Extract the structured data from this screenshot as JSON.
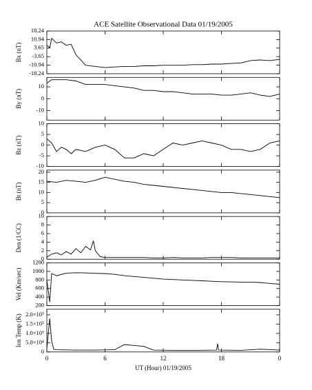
{
  "chart_data": [
    {
      "type": "line",
      "title": "ACE Satellite Observational Data   01/19/2005",
      "ylabel": "Bx (nT)",
      "x": [
        0,
        0.3,
        0.5,
        1,
        1.5,
        2,
        2.5,
        3,
        4,
        5,
        6,
        7,
        8,
        9,
        10,
        11,
        12,
        13,
        14,
        15,
        16,
        17,
        18,
        19,
        20,
        21,
        22,
        23,
        24
      ],
      "values": [
        6,
        4,
        12,
        8,
        9,
        6,
        7,
        -2,
        -11,
        -12,
        -13,
        -12.5,
        -12,
        -12,
        -11.5,
        -11.5,
        -11,
        -11,
        -11,
        -10.5,
        -10.5,
        -10,
        -10,
        -9.5,
        -9,
        -7,
        -6.5,
        -7,
        -6
      ],
      "ylim": [
        -18.24,
        18.24
      ],
      "yticks": [
        18.24,
        10.94,
        3.65,
        -3.65,
        -10.94,
        -18.24
      ],
      "color": "#000000"
    },
    {
      "type": "line",
      "ylabel": "By (nT)",
      "x": [
        0,
        0.5,
        1,
        2,
        3,
        4,
        5,
        6,
        7,
        8,
        9,
        10,
        11,
        12,
        13,
        14,
        15,
        16,
        17,
        18,
        19,
        20,
        21,
        22,
        23,
        24
      ],
      "values": [
        13,
        16,
        16,
        16,
        15,
        12,
        12,
        12,
        11,
        10,
        9,
        7,
        7,
        6,
        6,
        5,
        4,
        4,
        4,
        3,
        3,
        4,
        5,
        3,
        2,
        4
      ],
      "ylim": [
        -18,
        18
      ],
      "yticks": [
        10,
        0,
        -10
      ],
      "color": "#000000"
    },
    {
      "type": "line",
      "ylabel": "Bz (nT)",
      "x": [
        0,
        0.5,
        1,
        1.5,
        2,
        2.5,
        3,
        4,
        5,
        6,
        7,
        8,
        9,
        10,
        11,
        12,
        13,
        14,
        15,
        16,
        17,
        18,
        19,
        20,
        21,
        22,
        23,
        24
      ],
      "values": [
        3,
        1,
        -3,
        -1,
        -2,
        -4,
        -2,
        -3,
        -1,
        0,
        -2,
        -6,
        -6,
        -4,
        -5,
        -2,
        1,
        0,
        1,
        2,
        1,
        0,
        -2,
        -2,
        -3,
        -2,
        1,
        2
      ],
      "ylim": [
        -10,
        10
      ],
      "yticks": [
        10,
        5,
        0,
        -5,
        -10
      ],
      "color": "#000000"
    },
    {
      "type": "line",
      "ylabel": "Bt (nT)",
      "x": [
        0,
        1,
        2,
        3,
        4,
        5,
        6,
        7,
        8,
        9,
        10,
        11,
        12,
        13,
        14,
        15,
        16,
        17,
        18,
        19,
        20,
        21,
        22,
        23,
        24
      ],
      "values": [
        15.5,
        15,
        16,
        15.5,
        15,
        16,
        17.5,
        16.5,
        15.5,
        15,
        14,
        13.5,
        13,
        12.5,
        12,
        11.5,
        11,
        10.5,
        10,
        10,
        9.5,
        9,
        8.5,
        8,
        7.5
      ],
      "ylim": [
        0,
        21
      ],
      "yticks": [
        0,
        5,
        10,
        15,
        20
      ],
      "color": "#000000"
    },
    {
      "type": "line",
      "ylabel": "Den (1/CC)",
      "x": [
        0,
        0.5,
        1,
        1.5,
        2,
        2.5,
        3,
        3.5,
        4,
        4.5,
        4.8,
        5,
        5.5,
        6,
        7,
        8,
        9,
        10,
        11,
        12,
        13,
        14,
        15,
        16,
        17,
        18,
        19,
        20,
        21,
        22,
        23,
        24
      ],
      "values": [
        0.5,
        1.2,
        1.5,
        1,
        1.8,
        1.2,
        2.5,
        1.5,
        3,
        2.2,
        4.3,
        2,
        0.6,
        0.4,
        0.4,
        0.4,
        0.4,
        0.4,
        0.3,
        0.3,
        0.4,
        0.3,
        0.3,
        0.3,
        0.4,
        0.4,
        0.4,
        0.3,
        0.3,
        0.3,
        0.3,
        0.3
      ],
      "ylim": [
        0,
        10
      ],
      "yticks": [
        0,
        2,
        4,
        6,
        8,
        10
      ],
      "color": "#000000"
    },
    {
      "type": "line",
      "ylabel": "Vel (Km/sec)",
      "x": [
        0,
        0.3,
        0.5,
        1,
        2,
        3,
        4,
        5,
        6,
        7,
        8,
        9,
        10,
        11,
        12,
        13,
        14,
        15,
        16,
        17,
        18,
        19,
        20,
        21,
        22,
        23,
        24
      ],
      "values": [
        800,
        280,
        950,
        900,
        960,
        970,
        965,
        955,
        950,
        930,
        900,
        880,
        860,
        840,
        820,
        810,
        800,
        790,
        780,
        770,
        760,
        755,
        750,
        750,
        740,
        720,
        700
      ],
      "ylim": [
        200,
        1200
      ],
      "yticks": [
        200,
        400,
        600,
        800,
        1000,
        1200
      ],
      "color": "#000000"
    },
    {
      "type": "line",
      "ylabel": "Ion Temp (K)",
      "xlabel": "UT (Hour)  01/19/2005",
      "x": [
        0,
        0.3,
        0.5,
        0.7,
        1,
        3,
        5,
        7,
        8,
        9,
        10,
        11,
        13,
        15,
        17.5,
        17.6,
        17.7,
        20,
        22,
        24
      ],
      "values": [
        20000,
        180000,
        60000,
        15000,
        12000,
        10000,
        10000,
        12000,
        40000,
        35000,
        30000,
        10000,
        9000,
        8000,
        10000,
        45000,
        10000,
        9000,
        15000,
        10000
      ],
      "ylim": [
        0,
        230000
      ],
      "yticks": [
        0,
        {
          "value": 50000,
          "label": "5.0×10⁴"
        },
        {
          "value": 100000,
          "label": "1.0×10⁵"
        },
        {
          "value": 150000,
          "label": "1.5×10⁵"
        },
        {
          "value": 200000,
          "label": "2.0×10⁵"
        }
      ],
      "xlim": [
        0,
        24
      ],
      "xticks": [
        0,
        6,
        12,
        18,
        {
          "value": 24,
          "label": "0"
        }
      ],
      "color": "#000000"
    }
  ]
}
